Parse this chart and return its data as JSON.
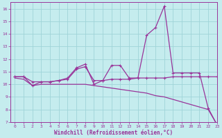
{
  "xlabel": "Windchill (Refroidissement éolien,°C)",
  "xlim": [
    -0.5,
    23
  ],
  "ylim": [
    7,
    16.5
  ],
  "xticks": [
    0,
    1,
    2,
    3,
    4,
    5,
    6,
    7,
    8,
    9,
    10,
    11,
    12,
    13,
    14,
    15,
    16,
    17,
    18,
    19,
    20,
    21,
    22,
    23
  ],
  "yticks": [
    7,
    8,
    9,
    10,
    11,
    12,
    13,
    14,
    15,
    16
  ],
  "bg_color": "#c5ecee",
  "line_color": "#993399",
  "grid_color": "#9fd4d8",
  "line_spike_x": [
    0,
    1,
    2,
    3,
    4,
    5,
    6,
    7,
    8,
    9,
    10,
    11,
    12,
    13,
    14,
    15,
    16,
    17,
    18,
    19,
    20,
    21,
    22,
    23
  ],
  "line_spike_y": [
    10.6,
    10.6,
    9.9,
    10.2,
    10.2,
    10.3,
    10.5,
    11.3,
    11.6,
    10.0,
    10.3,
    11.5,
    11.5,
    10.5,
    10.5,
    13.9,
    14.5,
    16.2,
    10.9,
    10.9,
    10.9,
    10.9,
    8.1,
    6.8
  ],
  "line_flat_x": [
    0,
    1,
    2,
    3,
    4,
    5,
    6,
    7,
    8,
    9,
    10,
    11,
    12,
    13,
    14,
    15,
    16,
    17,
    18,
    19,
    20,
    21,
    22,
    23
  ],
  "line_flat_y": [
    10.6,
    10.6,
    10.2,
    10.2,
    10.2,
    10.3,
    10.4,
    11.2,
    11.4,
    10.3,
    10.3,
    10.4,
    10.4,
    10.4,
    10.5,
    10.5,
    10.5,
    10.5,
    10.6,
    10.6,
    10.6,
    10.6,
    10.6,
    10.6
  ],
  "line_diag_x": [
    0,
    1,
    2,
    3,
    4,
    5,
    6,
    7,
    8,
    9,
    10,
    11,
    12,
    13,
    14,
    15,
    16,
    17,
    18,
    19,
    20,
    21,
    22,
    23
  ],
  "line_diag_y": [
    10.5,
    10.4,
    9.9,
    10.0,
    10.0,
    10.0,
    10.0,
    10.0,
    10.0,
    9.9,
    9.8,
    9.7,
    9.6,
    9.5,
    9.4,
    9.3,
    9.1,
    9.0,
    8.8,
    8.6,
    8.4,
    8.2,
    8.0,
    6.8
  ]
}
